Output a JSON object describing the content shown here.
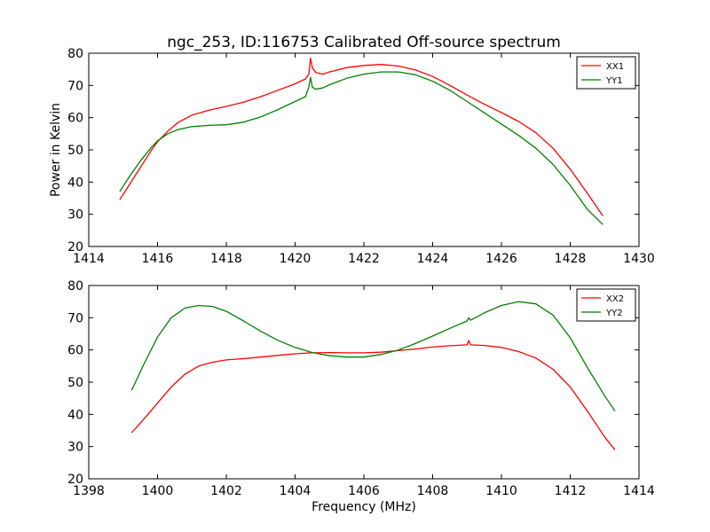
{
  "figure": {
    "title": "ngc_253, ID:116753 Calibrated Off-source spectrum"
  },
  "colors": {
    "XX": "#ff0000",
    "YY": "#008000",
    "axis": "#000000",
    "background": "#ffffff"
  },
  "chart_data": [
    {
      "type": "line",
      "title": "ngc_253, ID:116753 Calibrated Off-source spectrum",
      "xlabel": "",
      "ylabel": "Power in Kelvin",
      "xlim": [
        1414,
        1430
      ],
      "ylim": [
        20,
        80
      ],
      "xticks": [
        1414,
        1416,
        1418,
        1420,
        1422,
        1424,
        1426,
        1428,
        1430
      ],
      "yticks": [
        20,
        30,
        40,
        50,
        60,
        70,
        80
      ],
      "grid": false,
      "legend": "top-right",
      "series": [
        {
          "name": "XX1",
          "color": "#ff0000",
          "x": [
            1414.9,
            1415.2,
            1415.5,
            1415.8,
            1416.0,
            1416.3,
            1416.6,
            1417.0,
            1417.5,
            1418.0,
            1418.5,
            1419.0,
            1419.5,
            1420.0,
            1420.3,
            1420.4,
            1420.45,
            1420.5,
            1420.6,
            1420.8,
            1421.0,
            1421.5,
            1422.0,
            1422.5,
            1423.0,
            1423.5,
            1424.0,
            1424.5,
            1425.0,
            1425.5,
            1426.0,
            1426.5,
            1427.0,
            1427.5,
            1428.0,
            1428.5,
            1428.95
          ],
          "y": [
            34.5,
            39.5,
            44.5,
            49.5,
            52.5,
            55.8,
            58.5,
            60.8,
            62.3,
            63.5,
            64.8,
            66.5,
            68.5,
            70.5,
            72.0,
            73.5,
            78.5,
            75.5,
            74.0,
            73.5,
            74.2,
            75.5,
            76.2,
            76.5,
            76.0,
            74.8,
            72.8,
            70.0,
            67.0,
            64.2,
            61.6,
            58.8,
            55.3,
            50.5,
            44.0,
            36.5,
            29.5
          ]
        },
        {
          "name": "YY1",
          "color": "#008000",
          "x": [
            1414.9,
            1415.2,
            1415.5,
            1415.8,
            1416.0,
            1416.3,
            1416.6,
            1417.0,
            1417.5,
            1418.0,
            1418.5,
            1419.0,
            1419.5,
            1420.0,
            1420.3,
            1420.4,
            1420.45,
            1420.5,
            1420.6,
            1420.8,
            1421.0,
            1421.5,
            1422.0,
            1422.5,
            1423.0,
            1423.5,
            1424.0,
            1424.5,
            1425.0,
            1425.5,
            1426.0,
            1426.5,
            1427.0,
            1427.5,
            1428.0,
            1428.5,
            1428.95
          ],
          "y": [
            37.0,
            42.0,
            46.5,
            50.5,
            52.8,
            55.0,
            56.3,
            57.2,
            57.6,
            57.8,
            58.6,
            60.2,
            62.5,
            65.0,
            66.5,
            69.5,
            72.5,
            69.5,
            68.8,
            69.2,
            70.2,
            72.2,
            73.5,
            74.2,
            74.2,
            73.3,
            71.3,
            68.5,
            65.0,
            61.5,
            58.0,
            54.5,
            50.5,
            45.5,
            39.0,
            31.5,
            26.8
          ]
        }
      ]
    },
    {
      "type": "line",
      "title": "",
      "xlabel": "Frequency (MHz)",
      "ylabel": "",
      "xlim": [
        1398,
        1414
      ],
      "ylim": [
        20,
        80
      ],
      "xticks": [
        1398,
        1400,
        1402,
        1404,
        1406,
        1408,
        1410,
        1412,
        1414
      ],
      "yticks": [
        20,
        30,
        40,
        50,
        60,
        70,
        80
      ],
      "grid": false,
      "legend": "top-right",
      "series": [
        {
          "name": "XX2",
          "color": "#ff0000",
          "x": [
            1399.25,
            1399.6,
            1400.0,
            1400.4,
            1400.8,
            1401.2,
            1401.6,
            1402.0,
            1402.5,
            1403.0,
            1403.5,
            1404.0,
            1404.5,
            1405.0,
            1405.5,
            1406.0,
            1406.5,
            1407.0,
            1407.5,
            1408.0,
            1408.5,
            1409.0,
            1409.05,
            1409.1,
            1409.5,
            1410.0,
            1410.5,
            1411.0,
            1411.5,
            1412.0,
            1412.5,
            1413.0,
            1413.3
          ],
          "y": [
            34.3,
            38.5,
            43.5,
            48.5,
            52.5,
            55.0,
            56.2,
            56.9,
            57.3,
            57.8,
            58.3,
            58.8,
            59.1,
            59.2,
            59.1,
            59.1,
            59.3,
            59.8,
            60.3,
            60.9,
            61.3,
            61.6,
            63.0,
            61.6,
            61.4,
            60.8,
            59.5,
            57.5,
            54.0,
            48.5,
            41.0,
            33.0,
            29.0
          ]
        },
        {
          "name": "YY2",
          "color": "#008000",
          "x": [
            1399.25,
            1399.6,
            1400.0,
            1400.4,
            1400.8,
            1401.2,
            1401.6,
            1402.0,
            1402.5,
            1403.0,
            1403.5,
            1404.0,
            1404.5,
            1405.0,
            1405.5,
            1406.0,
            1406.5,
            1407.0,
            1407.5,
            1408.0,
            1408.5,
            1409.0,
            1409.05,
            1409.1,
            1409.5,
            1410.0,
            1410.5,
            1411.0,
            1411.5,
            1412.0,
            1412.5,
            1413.0,
            1413.3
          ],
          "y": [
            47.5,
            55.5,
            64.0,
            70.0,
            73.0,
            73.8,
            73.5,
            72.0,
            69.0,
            65.8,
            63.0,
            60.8,
            59.2,
            58.2,
            57.8,
            57.8,
            58.6,
            60.0,
            62.0,
            64.3,
            66.7,
            69.0,
            70.0,
            69.2,
            71.5,
            73.8,
            75.0,
            74.3,
            70.8,
            63.8,
            54.5,
            45.8,
            41.0
          ]
        }
      ]
    }
  ]
}
